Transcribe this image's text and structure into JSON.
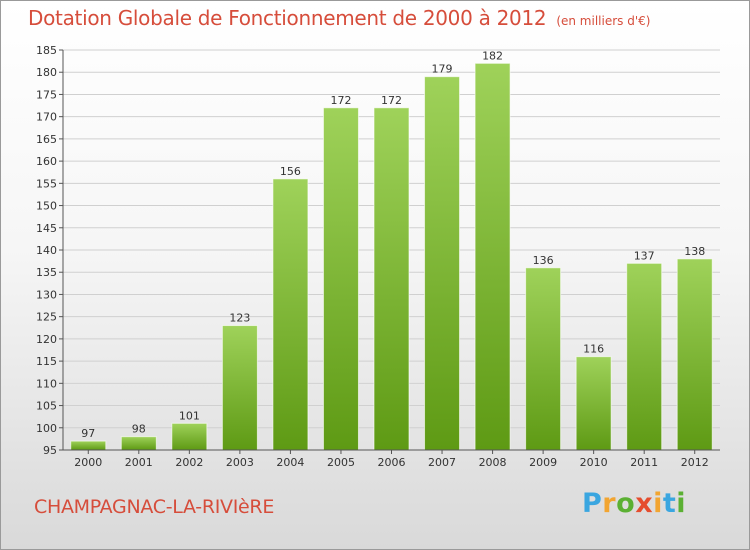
{
  "header": {
    "title": "Dotation Globale de Fonctionnement de 2000 à 2012",
    "unit_note": "(en milliers d'€)"
  },
  "footer": {
    "place": "CHAMPAGNAC-LA-RIVIèRE",
    "logo_letters": [
      {
        "ch": "P",
        "color": "#3aa6e0"
      },
      {
        "ch": "r",
        "color": "#f2a531"
      },
      {
        "ch": "o",
        "color": "#5bb033"
      },
      {
        "ch": "x",
        "color": "#e54d2e"
      },
      {
        "ch": "i",
        "color": "#f2a531"
      },
      {
        "ch": "t",
        "color": "#3aa6e0"
      },
      {
        "ch": "i",
        "color": "#5bb033"
      }
    ]
  },
  "chart_data": {
    "type": "bar",
    "title": "Dotation Globale de Fonctionnement de 2000 à 2012",
    "subtitle": "(en milliers d'€)",
    "xlabel": "",
    "ylabel": "",
    "categories": [
      "2000",
      "2001",
      "2002",
      "2003",
      "2004",
      "2005",
      "2006",
      "2007",
      "2008",
      "2009",
      "2010",
      "2011",
      "2012"
    ],
    "values": [
      97,
      98,
      101,
      123,
      156,
      172,
      172,
      179,
      182,
      136,
      116,
      137,
      138
    ],
    "data_labels": [
      "97",
      "98",
      "101",
      "123",
      "156",
      "172",
      "172",
      "179",
      "182",
      "136",
      "116",
      "137",
      "138"
    ],
    "ylim": [
      95,
      185
    ],
    "yticks": [
      95,
      100,
      105,
      110,
      115,
      120,
      125,
      130,
      135,
      140,
      145,
      150,
      155,
      160,
      165,
      170,
      175,
      180,
      185
    ],
    "grid": true,
    "bar_color_top": "#9fd25a",
    "bar_color_bottom": "#5e9a14",
    "grid_color": "#d0d0d0"
  }
}
